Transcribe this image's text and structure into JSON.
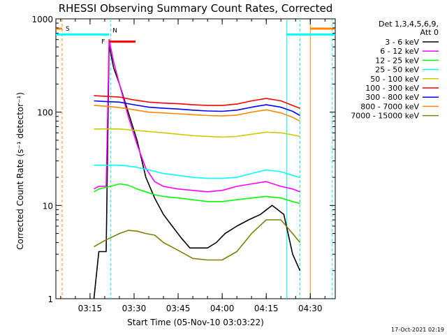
{
  "chart_data": {
    "type": "line",
    "title": "RHESSI Observing Summary Count Rates, Corrected",
    "xlabel": "Start Time (05-Nov-10 03:03:22)",
    "ylabel": "Corrected Count Rate (s⁻¹ detector⁻¹)",
    "y_scale": "log",
    "ylim": [
      1,
      1000
    ],
    "xlim": [
      "03:03:22",
      "04:38:30"
    ],
    "x_tick_labels": [
      "03:15",
      "03:30",
      "03:45",
      "04:00",
      "04:15",
      "04:30"
    ],
    "y_tick_labels": [
      "1",
      "10",
      "100",
      "1000"
    ],
    "legend_header": [
      "Det 1,3,4,5,6,9,",
      "Att 0"
    ],
    "legend_position": "right, outside plot",
    "series": [
      {
        "name": "3 - 6 keV",
        "color": "#000000",
        "x": [
          "03:16:20",
          "03:18:00",
          "03:20:30",
          "03:21:30",
          "03:23:00",
          "03:25:00",
          "03:28:00",
          "03:31:00",
          "03:34:00",
          "03:37:00",
          "03:40:00",
          "03:43:00",
          "03:46:00",
          "03:49:00",
          "03:52:00",
          "03:55:00",
          "03:58:00",
          "04:01:00",
          "04:05:00",
          "04:09:00",
          "04:13:00",
          "04:17:00",
          "04:21:00",
          "04:24:00",
          "04:26:30"
        ],
        "y": [
          1,
          3.2,
          3.2,
          520,
          300,
          200,
          100,
          50,
          20,
          12,
          8,
          6,
          4.5,
          3.5,
          3.5,
          3.5,
          4,
          5,
          6,
          7,
          8,
          10,
          8,
          3,
          2
        ]
      },
      {
        "name": "6 - 12 keV",
        "color": "#ff00ff",
        "x": [
          "03:16:20",
          "03:18:00",
          "03:20:30",
          "03:21:30",
          "03:23:00",
          "03:25:00",
          "03:28:00",
          "03:31:00",
          "03:34:00",
          "03:37:00",
          "03:40:00",
          "03:45:00",
          "03:50:00",
          "03:55:00",
          "04:00:00",
          "04:05:00",
          "04:10:00",
          "04:15:00",
          "04:20:00",
          "04:24:00",
          "04:26:30"
        ],
        "y": [
          15,
          16,
          16,
          600,
          350,
          200,
          90,
          45,
          25,
          18,
          16,
          15,
          14.5,
          14,
          14.5,
          16,
          17,
          18,
          16,
          15,
          14
        ]
      },
      {
        "name": "12 - 25 keV",
        "color": "#00ff00",
        "x": [
          "03:16:20",
          "03:18:00",
          "03:20:00",
          "03:22:00",
          "03:25:00",
          "03:28:00",
          "03:31:00",
          "03:34:00",
          "03:37:00",
          "03:40:00",
          "03:45:00",
          "03:50:00",
          "03:55:00",
          "04:00:00",
          "04:05:00",
          "04:10:00",
          "04:15:00",
          "04:20:00",
          "04:24:00",
          "04:26:30"
        ],
        "y": [
          14,
          15,
          15.5,
          16,
          17,
          16.5,
          15,
          14,
          13,
          12.5,
          12,
          11.5,
          11,
          11,
          11.5,
          12,
          12.5,
          12,
          11,
          10.5
        ]
      },
      {
        "name": "25 - 50 keV",
        "color": "#00ffff",
        "x": [
          "03:16:20",
          "03:20:00",
          "03:25:00",
          "03:30:00",
          "03:35:00",
          "03:40:00",
          "03:45:00",
          "03:50:00",
          "03:55:00",
          "04:00:00",
          "04:05:00",
          "04:10:00",
          "04:15:00",
          "04:20:00",
          "04:24:00",
          "04:26:30"
        ],
        "y": [
          27,
          27,
          27,
          26,
          24,
          22,
          21,
          20,
          19.5,
          19.5,
          20,
          22,
          24,
          23,
          21,
          20
        ]
      },
      {
        "name": "50 - 100 keV",
        "color": "#cccc00",
        "x": [
          "03:16:20",
          "03:20:00",
          "03:25:00",
          "03:30:00",
          "03:35:00",
          "03:40:00",
          "03:45:00",
          "03:50:00",
          "03:55:00",
          "04:00:00",
          "04:05:00",
          "04:10:00",
          "04:15:00",
          "04:20:00",
          "04:24:00",
          "04:26:30"
        ],
        "y": [
          66,
          66,
          66,
          64,
          62,
          60,
          58,
          56,
          55,
          54,
          55,
          58,
          61,
          60,
          57,
          55
        ]
      },
      {
        "name": "100 - 300 keV",
        "color": "#ff0000",
        "x": [
          "03:16:20",
          "03:20:00",
          "03:25:00",
          "03:30:00",
          "03:35:00",
          "03:40:00",
          "03:45:00",
          "03:50:00",
          "03:55:00",
          "04:00:00",
          "04:05:00",
          "04:10:00",
          "04:15:00",
          "04:20:00",
          "04:24:00",
          "04:26:30"
        ],
        "y": [
          150,
          148,
          145,
          135,
          128,
          125,
          123,
          120,
          118,
          118,
          122,
          132,
          140,
          132,
          118,
          110
        ]
      },
      {
        "name": "300 - 800 keV",
        "color": "#0000ff",
        "x": [
          "03:16:20",
          "03:20:00",
          "03:25:00",
          "03:30:00",
          "03:35:00",
          "03:40:00",
          "03:45:00",
          "03:50:00",
          "03:55:00",
          "04:00:00",
          "04:05:00",
          "04:10:00",
          "04:15:00",
          "04:20:00",
          "04:24:00",
          "04:26:30"
        ],
        "y": [
          132,
          130,
          128,
          120,
          113,
          110,
          108,
          105,
          103,
          102,
          105,
          113,
          120,
          113,
          102,
          92
        ]
      },
      {
        "name": "800 - 7000 keV",
        "color": "#ff8800",
        "x": [
          "03:16:20",
          "03:20:00",
          "03:25:00",
          "03:30:00",
          "03:35:00",
          "03:40:00",
          "03:45:00",
          "03:50:00",
          "03:55:00",
          "04:00:00",
          "04:05:00",
          "04:10:00",
          "04:15:00",
          "04:20:00",
          "04:24:00",
          "04:26:30"
        ],
        "y": [
          118,
          116,
          112,
          106,
          100,
          98,
          96,
          94,
          92,
          91,
          93,
          100,
          106,
          98,
          88,
          80
        ]
      },
      {
        "name": "7000 - 15000 keV",
        "color": "#808000",
        "x": [
          "03:16:20",
          "03:20:00",
          "03:25:00",
          "03:28:00",
          "03:31:00",
          "03:34:00",
          "03:37:00",
          "03:40:00",
          "03:45:00",
          "03:50:00",
          "03:55:00",
          "04:00:00",
          "04:05:00",
          "04:10:00",
          "04:15:00",
          "04:20:00",
          "04:24:00",
          "04:26:30"
        ],
        "y": [
          3.6,
          4.2,
          5,
          5.4,
          5.3,
          5,
          4.8,
          4,
          3.3,
          2.7,
          2.6,
          2.6,
          3.2,
          5,
          7,
          7,
          5,
          4
        ]
      }
    ],
    "vertical_markers": [
      {
        "time": "03:05:30",
        "color": "#ff8800",
        "style": "dashed"
      },
      {
        "time": "03:22:00",
        "color": "#00ffff",
        "style": "dashed"
      },
      {
        "time": "04:22:00",
        "color": "#00ffff",
        "style": "solid"
      },
      {
        "time": "04:26:30",
        "color": "#00ffff",
        "style": "dashed"
      },
      {
        "time": "04:30:00",
        "color": "#ff8800",
        "style": "solid"
      },
      {
        "time": "04:37:30",
        "color": "#00ffff",
        "style": "dashed"
      }
    ],
    "flag_bars": [
      {
        "label": "S",
        "color": "#ff8800",
        "start": "03:03:22",
        "end": "03:05:30",
        "level": 785,
        "label_color": "#ff8800"
      },
      {
        "label": "",
        "color": "#ff8800",
        "start": "04:30:00",
        "end": "04:38:30",
        "level": 785,
        "label_color": "#ff8800"
      },
      {
        "label": "N",
        "color": "#00ffff",
        "start": "03:03:22",
        "end": "03:21:30",
        "level": 680,
        "label_color": "#00ffff"
      },
      {
        "label": "",
        "color": "#00ffff",
        "start": "04:22:00",
        "end": "04:38:30",
        "level": 680,
        "label_color": "#00ffff"
      },
      {
        "label": "F",
        "color": "#ff0000",
        "start": "03:21:30",
        "end": "03:30:30",
        "level": 570,
        "label_color": "#ff0000"
      }
    ]
  },
  "footer": {
    "timestamp": "17-Oct-2021 02:19"
  }
}
